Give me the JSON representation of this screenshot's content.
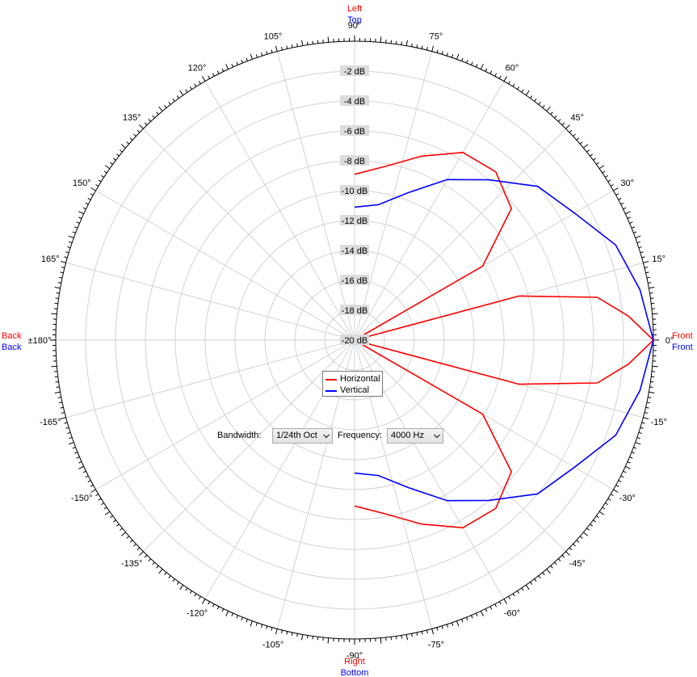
{
  "colors": {
    "horizontal": "#ff0000",
    "vertical": "#0000ff",
    "grid": "#d3d3d3",
    "axis": "#000000",
    "db_label_bg": "#dcdcdc"
  },
  "direction_labels": {
    "top_1": "Left",
    "top_2": "Top",
    "bottom_1": "Right",
    "bottom_2": "Bottom",
    "left_1": "Back",
    "left_2": "Back",
    "right_1": "Front",
    "right_2": "Front"
  },
  "controls": {
    "bandwidth_label": "Bandwidth:",
    "bandwidth_value": "1/24th Oct",
    "frequency_label": "Frequency:",
    "frequency_value": "4000 Hz"
  },
  "legend": [
    {
      "label": "Horizontal",
      "color": "#ff0000"
    },
    {
      "label": "Vertical",
      "color": "#0000ff"
    }
  ],
  "chart_data": {
    "type": "polar",
    "radial_axis": {
      "min": -20,
      "max": 0,
      "step": 2,
      "unit": "dB",
      "tick_labels": [
        "-2 dB",
        "-4 dB",
        "-6 dB",
        "-8 dB",
        "-10 dB",
        "-12 dB",
        "-14 dB",
        "-16 dB",
        "-18 dB",
        "-20 dB"
      ]
    },
    "angular_axis": {
      "step_deg": 15,
      "tick_labels": [
        "0°",
        "15°",
        "30°",
        "45°",
        "60°",
        "75°",
        "90°",
        "105°",
        "120°",
        "135°",
        "150°",
        "165°",
        "±180°",
        "-165°",
        "-150°",
        "-135°",
        "-120°",
        "-105°",
        "-90°",
        "-75°",
        "-60°",
        "-45°",
        "-30°",
        "-15°"
      ]
    },
    "grid": true,
    "legend_position": "center",
    "series": [
      {
        "name": "Horizontal",
        "points": [
          {
            "angle": 90,
            "db": -8.9
          },
          {
            "angle": 80,
            "db": -8.2
          },
          {
            "angle": 70,
            "db": -6.9
          },
          {
            "angle": 60,
            "db": -5.5
          },
          {
            "angle": 50,
            "db": -5.3
          },
          {
            "angle": 40,
            "db": -6.3
          },
          {
            "angle": 30,
            "db": -10.1
          },
          {
            "angle": 20,
            "db": -20
          },
          {
            "angle": 15,
            "db": -8.6
          },
          {
            "angle": 10,
            "db": -3.5
          },
          {
            "angle": 5,
            "db": -1.6
          },
          {
            "angle": 0,
            "db": 0
          },
          {
            "angle": -5,
            "db": -1.6
          },
          {
            "angle": -10,
            "db": -3.5
          },
          {
            "angle": -15,
            "db": -8.6
          },
          {
            "angle": -20,
            "db": -20
          },
          {
            "angle": -30,
            "db": -10.1
          },
          {
            "angle": -40,
            "db": -6.3
          },
          {
            "angle": -50,
            "db": -5.3
          },
          {
            "angle": -60,
            "db": -5.5
          },
          {
            "angle": -70,
            "db": -6.9
          },
          {
            "angle": -80,
            "db": -8.2
          },
          {
            "angle": -90,
            "db": -8.9
          }
        ]
      },
      {
        "name": "Vertical",
        "points": [
          {
            "angle": 90,
            "db": -11.1
          },
          {
            "angle": 80,
            "db": -10.8
          },
          {
            "angle": 70,
            "db": -9.5
          },
          {
            "angle": 60,
            "db": -7.6
          },
          {
            "angle": 50,
            "db": -6.0
          },
          {
            "angle": 40,
            "db": -4.0
          },
          {
            "angle": 30,
            "db": -3.0
          },
          {
            "angle": 20,
            "db": -1.4
          },
          {
            "angle": 10,
            "db": -0.6
          },
          {
            "angle": 0,
            "db": 0
          },
          {
            "angle": -10,
            "db": -0.6
          },
          {
            "angle": -20,
            "db": -1.4
          },
          {
            "angle": -30,
            "db": -3.0
          },
          {
            "angle": -40,
            "db": -4.0
          },
          {
            "angle": -50,
            "db": -6.0
          },
          {
            "angle": -60,
            "db": -7.6
          },
          {
            "angle": -70,
            "db": -9.5
          },
          {
            "angle": -80,
            "db": -10.8
          },
          {
            "angle": -90,
            "db": -11.1
          }
        ]
      }
    ]
  }
}
